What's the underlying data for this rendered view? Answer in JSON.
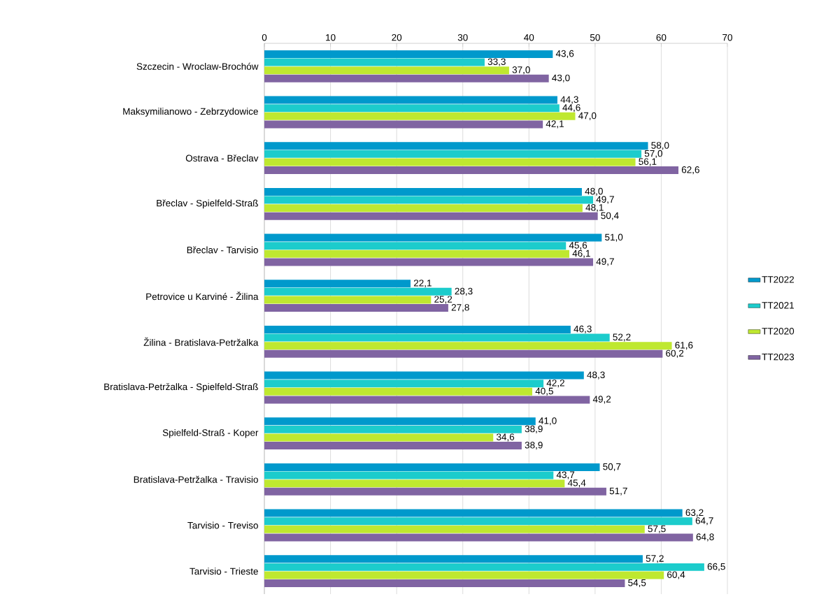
{
  "chart_data": {
    "type": "bar",
    "orientation": "horizontal",
    "categories": [
      "Szczecin - Wroclaw-Brochów",
      "Maksymilianowo - Zebrzydowice",
      "Ostrava - Břeclav",
      "Břeclav - Spielfeld-Straß",
      "Břeclav - Tarvisio",
      "Petrovice u Karviné - Žilina",
      "Žilina - Bratislava-Petržalka",
      "Bratislava-Petržalka - Spielfeld-Straß",
      "Spielfeld-Straß - Koper",
      "Bratislava-Petržalka - Travisio",
      "Tarvisio - Treviso",
      "Tarvisio - Trieste"
    ],
    "series": [
      {
        "name": "TT2022",
        "color": "#0099cc",
        "values": [
          43.6,
          44.3,
          58.0,
          48.0,
          51.0,
          22.1,
          46.3,
          48.3,
          41.0,
          50.7,
          63.2,
          57.2
        ],
        "value_labels": [
          "43,6",
          "44,3",
          "58,0",
          "48,0",
          "51,0",
          "22,1",
          "46,3",
          "48,3",
          "41,0",
          "50,7",
          "63,2",
          "57,2"
        ]
      },
      {
        "name": "TT2021",
        "color": "#1ccccc",
        "values": [
          33.3,
          44.6,
          57.0,
          49.7,
          45.6,
          28.3,
          52.2,
          42.2,
          38.9,
          43.7,
          64.7,
          66.5
        ],
        "value_labels": [
          "33,3",
          "44,6",
          "57,0",
          "49,7",
          "45,6",
          "28,3",
          "52,2",
          "42,2",
          "38,9",
          "43,7",
          "64,7",
          "66,5"
        ]
      },
      {
        "name": "TT2020",
        "color": "#bfe830",
        "values": [
          37.0,
          47.0,
          56.1,
          48.1,
          46.1,
          25.2,
          61.6,
          40.5,
          34.6,
          45.4,
          57.5,
          60.4
        ],
        "value_labels": [
          "37,0",
          "47,0",
          "56,1",
          "48,1",
          "46,1",
          "25,2",
          "61,6",
          "40,5",
          "34,6",
          "45,4",
          "57,5",
          "60,4"
        ]
      },
      {
        "name": "TT2023",
        "color": "#8064a2",
        "values": [
          43.0,
          42.1,
          62.6,
          50.4,
          49.7,
          27.8,
          60.2,
          49.2,
          38.9,
          51.7,
          64.8,
          54.5
        ],
        "value_labels": [
          "43,0",
          "42,1",
          "62,6",
          "50,4",
          "49,7",
          "27,8",
          "60,2",
          "49,2",
          "38,9",
          "51,7",
          "64,8",
          "54,5"
        ]
      }
    ],
    "xlim": [
      0,
      70
    ],
    "xticks": [
      0,
      10,
      20,
      30,
      40,
      50,
      60,
      70
    ],
    "grid": "x",
    "legend": "right"
  }
}
